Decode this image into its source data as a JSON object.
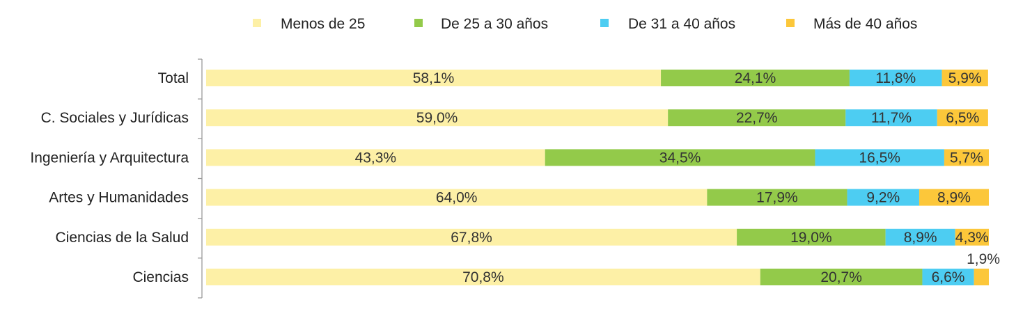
{
  "chart_data": {
    "type": "bar",
    "orientation": "horizontal",
    "stacked": true,
    "legend_position": "top",
    "grid": false,
    "xlim": [
      0,
      100
    ],
    "categories": [
      "Total",
      "C. Sociales y Jurídicas",
      "Ingeniería y Arquitectura",
      "Artes y Humanidades",
      "Ciencias de la Salud",
      "Ciencias"
    ],
    "series": [
      {
        "name": "Menos de 25",
        "color": "#FDF0A6",
        "values": [
          58.1,
          59.0,
          43.3,
          64.0,
          67.8,
          70.8
        ],
        "labels": [
          "58,1%",
          "59,0%",
          "43,3%",
          "64,0%",
          "67,8%",
          "70,8%"
        ]
      },
      {
        "name": "De 25 a 30 años",
        "color": "#93CA4A",
        "values": [
          24.1,
          22.7,
          34.5,
          17.9,
          19.0,
          20.7
        ],
        "labels": [
          "24,1%",
          "22,7%",
          "34,5%",
          "17,9%",
          "19,0%",
          "20,7%"
        ]
      },
      {
        "name": "De 31 a 40 años",
        "color": "#4DCDF2",
        "values": [
          11.8,
          11.7,
          16.5,
          9.2,
          8.9,
          6.6
        ],
        "labels": [
          "11,8%",
          "11,7%",
          "16,5%",
          "9,2%",
          "8,9%",
          "6,6%"
        ]
      },
      {
        "name": "Más de 40 años",
        "color": "#FCC73A",
        "values": [
          5.9,
          6.5,
          5.7,
          8.9,
          4.3,
          1.9
        ],
        "labels": [
          "5,9%",
          "6,5%",
          "5,7%",
          "8,9%",
          "4,3%",
          "1,9%"
        ]
      }
    ]
  }
}
